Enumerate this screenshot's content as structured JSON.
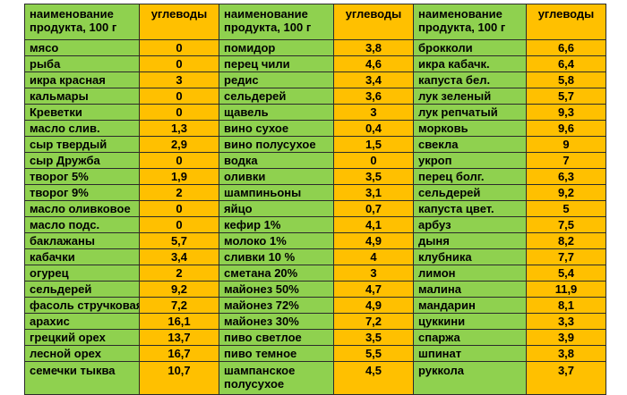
{
  "header": {
    "name_label": "наименование продукта, 100 г",
    "value_label": "углеводы"
  },
  "rows": [
    [
      {
        "name": "мясо",
        "value": "0"
      },
      {
        "name": "помидор",
        "value": "3,8"
      },
      {
        "name": "брокколи",
        "value": "6,6"
      }
    ],
    [
      {
        "name": "рыба",
        "value": "0"
      },
      {
        "name": "перец чили",
        "value": "4,6"
      },
      {
        "name": "икра кабачк.",
        "value": "6,4"
      }
    ],
    [
      {
        "name": "икра красная",
        "value": "3"
      },
      {
        "name": "редис",
        "value": "3,4"
      },
      {
        "name": "капуста бел.",
        "value": "5,8"
      }
    ],
    [
      {
        "name": "кальмары",
        "value": "0"
      },
      {
        "name": "сельдерей",
        "value": "3,6"
      },
      {
        "name": "лук зеленый",
        "value": "5,7"
      }
    ],
    [
      {
        "name": "Креветки",
        "value": "0"
      },
      {
        "name": "щавель",
        "value": "3"
      },
      {
        "name": "лук репчатый",
        "value": "9,3"
      }
    ],
    [
      {
        "name": "масло слив.",
        "value": "1,3"
      },
      {
        "name": "вино сухое",
        "value": "0,4"
      },
      {
        "name": "морковь",
        "value": "9,6"
      }
    ],
    [
      {
        "name": "сыр твердый",
        "value": "2,9"
      },
      {
        "name": "вино полусухое",
        "value": "1,5"
      },
      {
        "name": "свекла",
        "value": "9"
      }
    ],
    [
      {
        "name": "сыр Дружба",
        "value": "0"
      },
      {
        "name": "водка",
        "value": "0"
      },
      {
        "name": "укроп",
        "value": "7"
      }
    ],
    [
      {
        "name": "творог 5%",
        "value": "1,9"
      },
      {
        "name": "оливки",
        "value": "3,5"
      },
      {
        "name": "перец болг.",
        "value": "6,3"
      }
    ],
    [
      {
        "name": "творог 9%",
        "value": "2"
      },
      {
        "name": "шампиньоны",
        "value": "3,1"
      },
      {
        "name": "сельдерей",
        "value": "9,2"
      }
    ],
    [
      {
        "name": "масло оливковое",
        "value": "0"
      },
      {
        "name": "яйцо",
        "value": "0,7"
      },
      {
        "name": "капуста цвет.",
        "value": "5"
      }
    ],
    [
      {
        "name": "масло подс.",
        "value": "0"
      },
      {
        "name": "кефир 1%",
        "value": "4,1"
      },
      {
        "name": "арбуз",
        "value": "7,5"
      }
    ],
    [
      {
        "name": "баклажаны",
        "value": "5,7"
      },
      {
        "name": "молоко 1%",
        "value": "4,9"
      },
      {
        "name": "дыня",
        "value": "8,2"
      }
    ],
    [
      {
        "name": "кабачки",
        "value": "3,4"
      },
      {
        "name": "сливки 10 %",
        "value": "4"
      },
      {
        "name": "клубника",
        "value": "7,7"
      }
    ],
    [
      {
        "name": "огурец",
        "value": "2"
      },
      {
        "name": "сметана 20%",
        "value": "3"
      },
      {
        "name": "лимон",
        "value": "5,4"
      }
    ],
    [
      {
        "name": "сельдерей",
        "value": "9,2"
      },
      {
        "name": "майонез 50%",
        "value": "4,7"
      },
      {
        "name": "малина",
        "value": "11,9"
      }
    ],
    [
      {
        "name": "фасоль стручковая",
        "value": "7,2"
      },
      {
        "name": "майонез 72%",
        "value": "4,9"
      },
      {
        "name": "мандарин",
        "value": "8,1"
      }
    ],
    [
      {
        "name": "арахис",
        "value": "16,1"
      },
      {
        "name": "майонез 30%",
        "value": "7,2"
      },
      {
        "name": "цуккини",
        "value": "3,3"
      }
    ],
    [
      {
        "name": "грецкий орех",
        "value": "13,7"
      },
      {
        "name": "пиво светлое",
        "value": "3,5"
      },
      {
        "name": "спаржа",
        "value": "3,9"
      }
    ],
    [
      {
        "name": "лесной орех",
        "value": "16,7"
      },
      {
        "name": "пиво темное",
        "value": "5,5"
      },
      {
        "name": "шпинат",
        "value": "3,8"
      }
    ],
    [
      {
        "name": "семечки тыква",
        "value": "10,7"
      },
      {
        "name": "шампанское полусухое",
        "value": "4,5"
      },
      {
        "name": "руккола",
        "value": "3,7"
      }
    ]
  ],
  "colors": {
    "name_cell": "#8fd14f",
    "value_cell": "#ffc000",
    "border": "#2b2b2b"
  }
}
